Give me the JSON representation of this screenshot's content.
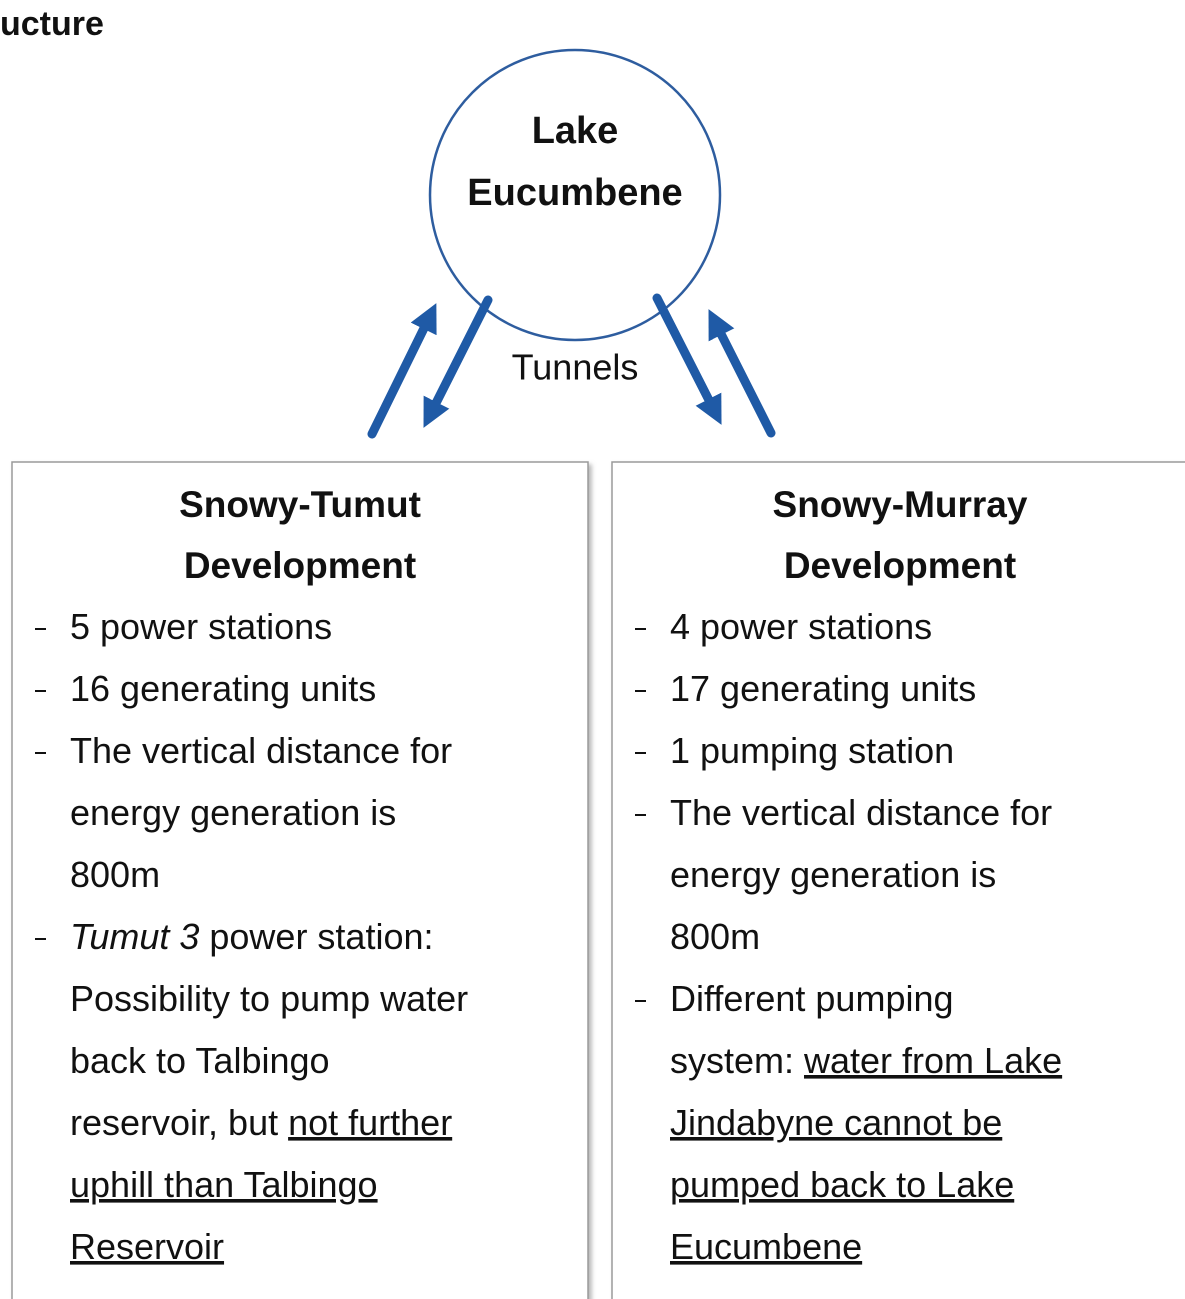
{
  "title": "ucture",
  "hub": {
    "lines": [
      "Lake",
      "Eucumbene"
    ]
  },
  "connector_label": "Tunnels",
  "boxes": [
    {
      "title_lines": [
        "Snowy-Tumut",
        "Development"
      ],
      "items": [
        [
          [
            "5 power stations"
          ]
        ],
        [
          [
            "16 generating units"
          ]
        ],
        [
          [
            "The vertical distance for"
          ],
          [
            "energy generation is"
          ],
          [
            "800m"
          ]
        ],
        [
          [
            {
              "text": "Tumut 3",
              "style": "italic"
            },
            " power station:"
          ],
          [
            "Possibility to pump water"
          ],
          [
            "back to Talbingo"
          ],
          [
            "reservoir, but ",
            {
              "text": "not further",
              "style": "underline"
            }
          ],
          [
            {
              "text": "uphill than Talbingo",
              "style": "underline"
            }
          ],
          [
            {
              "text": "Reservoir",
              "style": "underline"
            }
          ]
        ]
      ]
    },
    {
      "title_lines": [
        "Snowy-Murray",
        "Development"
      ],
      "items": [
        [
          [
            "4 power stations"
          ]
        ],
        [
          [
            "17 generating units"
          ]
        ],
        [
          [
            "1 pumping station"
          ]
        ],
        [
          [
            "The vertical distance for"
          ],
          [
            "energy generation is"
          ],
          [
            "800m"
          ]
        ],
        [
          [
            "Different pumping"
          ],
          [
            "system: ",
            {
              "text": "water from Lake",
              "style": "underline"
            }
          ],
          [
            {
              "text": "Jindabyne cannot be",
              "style": "underline"
            }
          ],
          [
            {
              "text": "pumped back to Lake",
              "style": "underline"
            }
          ],
          [
            {
              "text": "Eucumbene",
              "style": "underline"
            }
          ]
        ]
      ]
    }
  ]
}
